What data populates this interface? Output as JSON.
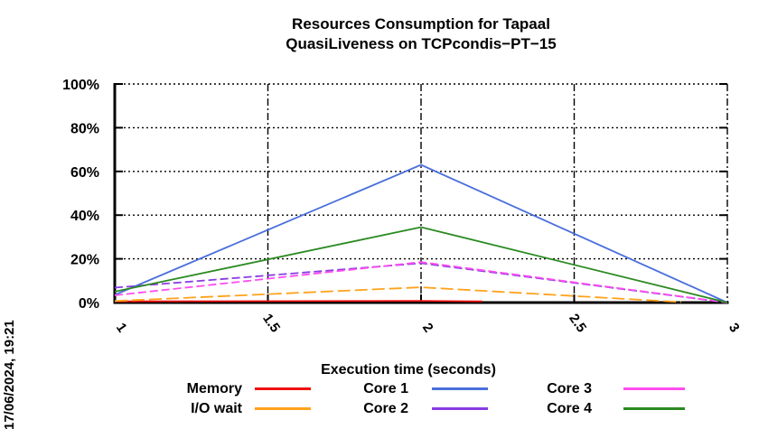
{
  "page": {
    "background": "#ffffff"
  },
  "chart_data": {
    "type": "line",
    "title_line1": "Resources Consumption for Tapaal",
    "title_line2": "QuasiLiveness on TCPcondis−PT−15",
    "timestamp": "17/06/2024, 19:21",
    "xlabel": "Execution time (seconds)",
    "ylabel": "",
    "x_range": [
      1,
      3
    ],
    "y_range": [
      0,
      100
    ],
    "grid": true,
    "legend_position": "bottom",
    "xticks": [
      {
        "v": 1,
        "label": "1"
      },
      {
        "v": 1.5,
        "label": "1.5"
      },
      {
        "v": 2,
        "label": "2"
      },
      {
        "v": 2.5,
        "label": "2.5"
      },
      {
        "v": 3,
        "label": "3"
      }
    ],
    "yticks": [
      {
        "v": 0,
        "label": "0%"
      },
      {
        "v": 20,
        "label": "20%"
      },
      {
        "v": 40,
        "label": "40%"
      },
      {
        "v": 60,
        "label": "60%"
      },
      {
        "v": 80,
        "label": "80%"
      },
      {
        "v": 100,
        "label": "100%"
      }
    ],
    "series": [
      {
        "name": "Memory",
        "color": "#f01010",
        "dash": "",
        "points": [
          [
            1,
            0.55
          ],
          [
            2,
            0.8
          ],
          [
            2.2,
            0.55
          ]
        ]
      },
      {
        "name": "I/O wait",
        "color": "#ffa21c",
        "dash": "14 5",
        "points": [
          [
            1,
            0.7
          ],
          [
            2,
            7.0
          ],
          [
            2.85,
            0.2
          ]
        ]
      },
      {
        "name": "Core 1",
        "color": "#4a6fdb",
        "dash": "",
        "points": [
          [
            1,
            3.5
          ],
          [
            2,
            63.0
          ],
          [
            3,
            0.0
          ]
        ]
      },
      {
        "name": "Core 2",
        "color": "#8a3be2",
        "dash": "9 4",
        "points": [
          [
            1,
            6.8
          ],
          [
            2,
            18.0
          ],
          [
            3,
            0.0
          ]
        ]
      },
      {
        "name": "Core 3",
        "color": "#ff4cf0",
        "dash": "9 4",
        "points": [
          [
            1,
            3.3
          ],
          [
            2,
            18.5
          ],
          [
            3,
            0.0
          ]
        ]
      },
      {
        "name": "Core 4",
        "color": "#2b8a22",
        "dash": "",
        "points": [
          [
            1,
            5.0
          ],
          [
            2,
            34.5
          ],
          [
            3,
            0.0
          ]
        ]
      }
    ]
  }
}
